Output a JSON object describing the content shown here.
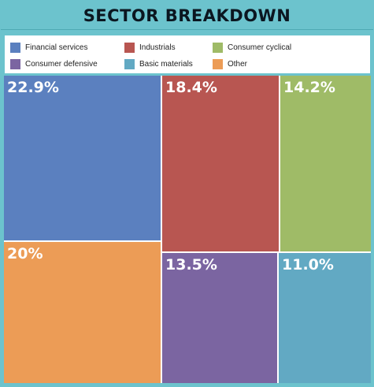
{
  "title": "SECTOR BREAKDOWN",
  "colors": {
    "frame": "#6cc3cd",
    "financial": "#5b80bf",
    "industrials": "#b85651",
    "consumer_cyclical": "#9fbb67",
    "consumer_defensive": "#7b65a1",
    "basic_materials": "#62a9c3",
    "other": "#ec9c56"
  },
  "chart_data": {
    "type": "treemap",
    "title": "SECTOR BREAKDOWN",
    "legend_position": "top",
    "series": [
      {
        "name": "Financial services",
        "value": 22.9,
        "label": "22.9%",
        "color": "#5b80bf"
      },
      {
        "name": "Industrials",
        "value": 18.4,
        "label": "18.4%",
        "color": "#b85651"
      },
      {
        "name": "Consumer cyclical",
        "value": 14.2,
        "label": "14.2%",
        "color": "#9fbb67"
      },
      {
        "name": "Consumer defensive",
        "value": 13.5,
        "label": "13.5%",
        "color": "#7b65a1"
      },
      {
        "name": "Basic materials",
        "value": 11.0,
        "label": "11.0%",
        "color": "#62a9c3"
      },
      {
        "name": "Other",
        "value": 20,
        "label": "20%",
        "color": "#ec9c56"
      }
    ]
  }
}
